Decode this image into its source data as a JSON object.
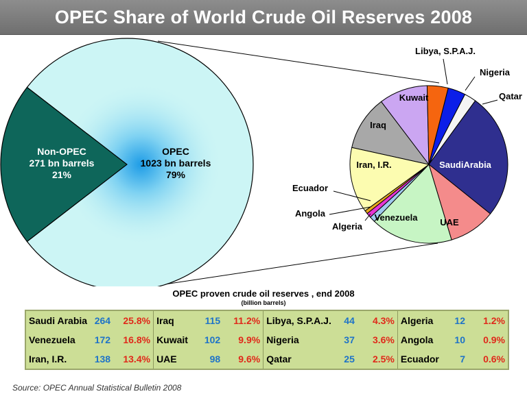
{
  "title": "OPEC Share of World Crude Oil Reserves 2008",
  "chart_data": [
    {
      "type": "pie",
      "slices": [
        {
          "label": "OPEC",
          "value_text": "1023 bn barrels",
          "value": 1023,
          "percent_text": "79%",
          "percent": 79,
          "color": "#ccf5f5"
        },
        {
          "label": "Non-OPEC",
          "value_text": "271 bn barrels",
          "value": 271,
          "percent_text": "21%",
          "percent": 21,
          "color": "#0e665a"
        }
      ]
    },
    {
      "type": "pie",
      "slices": [
        {
          "label": "Saudi Arabia",
          "value": 264,
          "color": "#2f2f8f"
        },
        {
          "label": "UAE",
          "value": 98,
          "color": "#f48b8b"
        },
        {
          "label": "Venezuela",
          "value": 172,
          "color": "#c7f5c4"
        },
        {
          "label": "Algeria",
          "value": 12,
          "color": "#9fc9ee"
        },
        {
          "label": "Angola",
          "value": 10,
          "color": "#e636d4"
        },
        {
          "label": "Ecuador",
          "value": 7,
          "color": "#e8a820"
        },
        {
          "label": "Iran, I.R.",
          "value": 138,
          "color": "#fcfcb0"
        },
        {
          "label": "Iraq",
          "value": 115,
          "color": "#a8a8a8"
        },
        {
          "label": "Kuwait",
          "value": 102,
          "color": "#cba6f2"
        },
        {
          "label": "Libya, S.P.A.J.",
          "value": 44,
          "color": "#f5650f"
        },
        {
          "label": "Nigeria",
          "value": 37,
          "color": "#0b1ee8"
        },
        {
          "label": "Qatar",
          "value": 25,
          "color": "#f4f4f4"
        }
      ]
    }
  ],
  "table": {
    "title": "OPEC proven crude oil reserves , end 2008",
    "unit": "(billion barrels)",
    "rows": [
      [
        {
          "country": "Saudi Arabia",
          "value": "264",
          "pct": "25.8%"
        },
        {
          "country": "Iraq",
          "value": "115",
          "pct": "11.2%"
        },
        {
          "country": "Libya, S.P.A.J.",
          "value": "44",
          "pct": "4.3%"
        },
        {
          "country": "Algeria",
          "value": "12",
          "pct": "1.2%"
        }
      ],
      [
        {
          "country": "Venezuela",
          "value": "172",
          "pct": "16.8%"
        },
        {
          "country": "Kuwait",
          "value": "102",
          "pct": "9.9%"
        },
        {
          "country": "Nigeria",
          "value": "37",
          "pct": "3.6%"
        },
        {
          "country": "Angola",
          "value": "10",
          "pct": "0.9%"
        }
      ],
      [
        {
          "country": "Iran, I.R.",
          "value": "138",
          "pct": "13.4%"
        },
        {
          "country": "UAE",
          "value": "98",
          "pct": "9.6%"
        },
        {
          "country": "Qatar",
          "value": "25",
          "pct": "2.5%"
        },
        {
          "country": "Ecuador",
          "value": "7",
          "pct": "0.6%"
        }
      ]
    ]
  },
  "source": "Source:  OPEC Annual Statistical Bulletin 2008"
}
